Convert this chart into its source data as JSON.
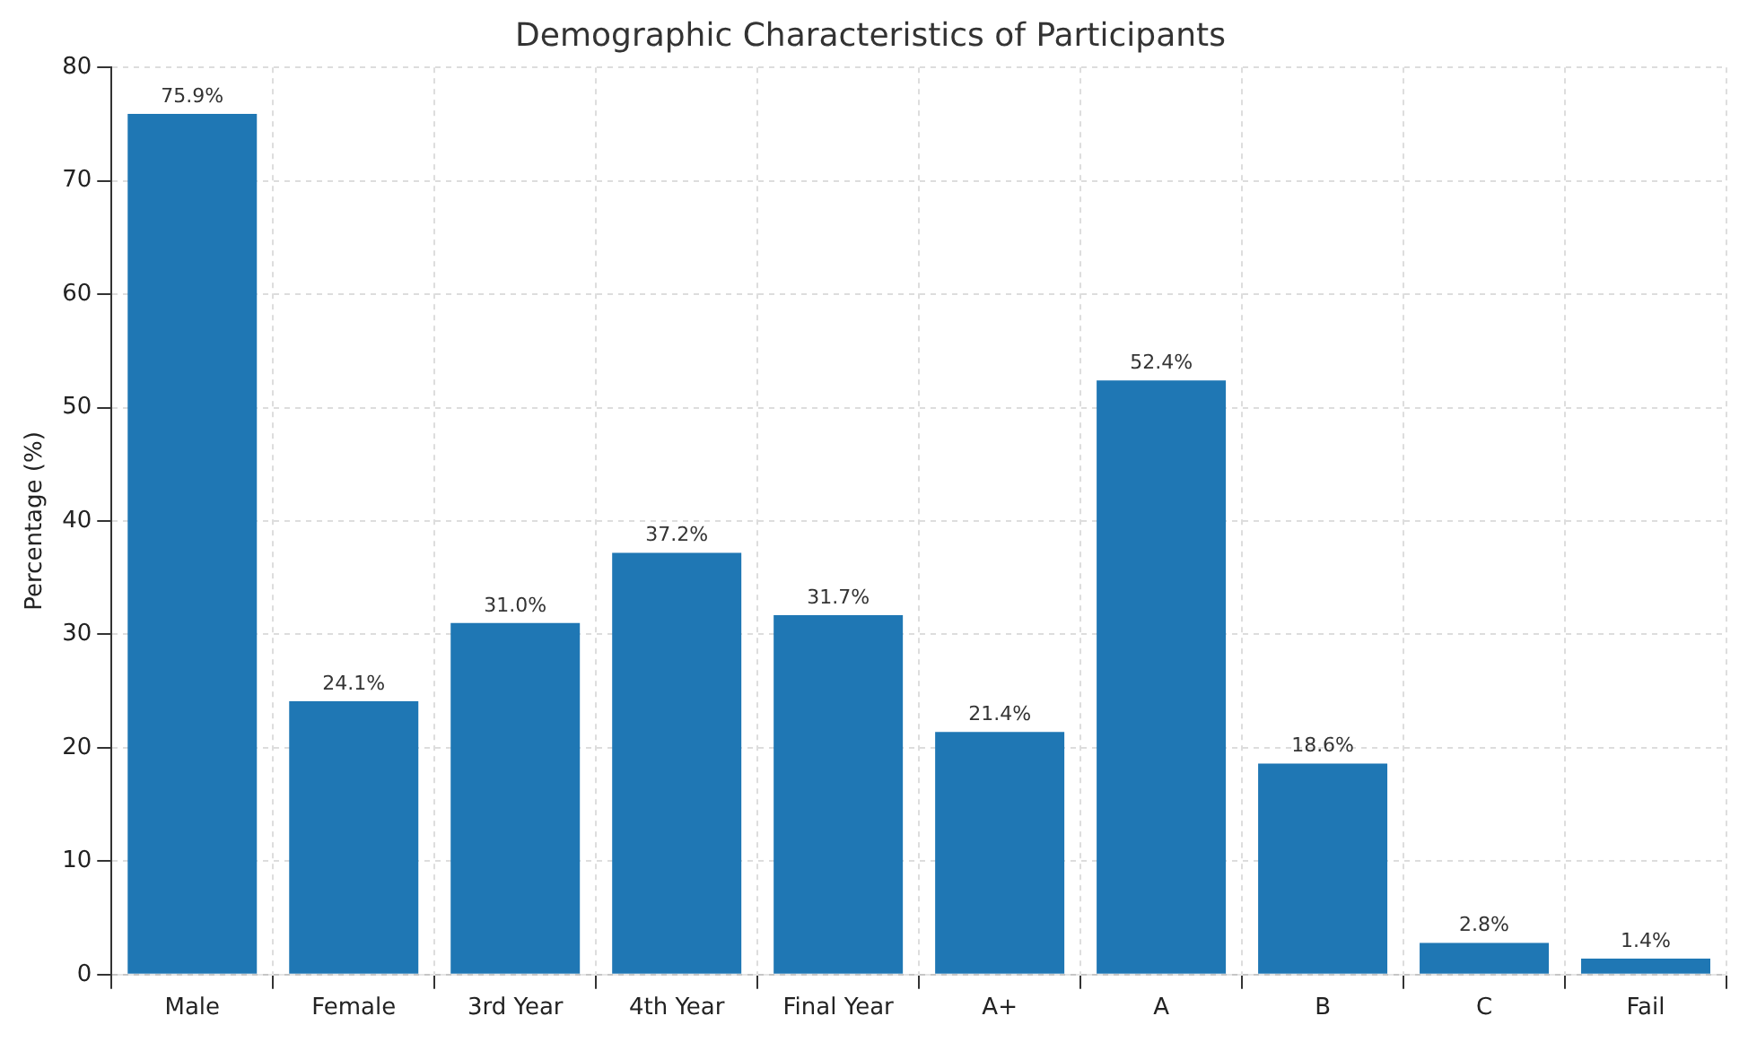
{
  "chart_data": {
    "type": "bar",
    "title": "Demographic Characteristics of Participants",
    "ylabel": "Percentage (%)",
    "categories": [
      "Male",
      "Female",
      "3rd Year",
      "4th Year",
      "Final Year",
      "A+",
      "A",
      "B",
      "C",
      "Fail"
    ],
    "values": [
      75.9,
      24.1,
      31.0,
      37.2,
      31.7,
      21.4,
      52.4,
      18.6,
      2.8,
      1.4
    ],
    "value_labels": [
      "75.9%",
      "24.1%",
      "31.0%",
      "37.2%",
      "31.7%",
      "21.4%",
      "52.4%",
      "18.6%",
      "2.8%",
      "1.4%"
    ],
    "color": "#1f77b4",
    "ylim": [
      0,
      80
    ],
    "yticks": [
      0,
      10,
      20,
      30,
      40,
      50,
      60,
      70,
      80
    ],
    "grid": true,
    "legend": false
  }
}
